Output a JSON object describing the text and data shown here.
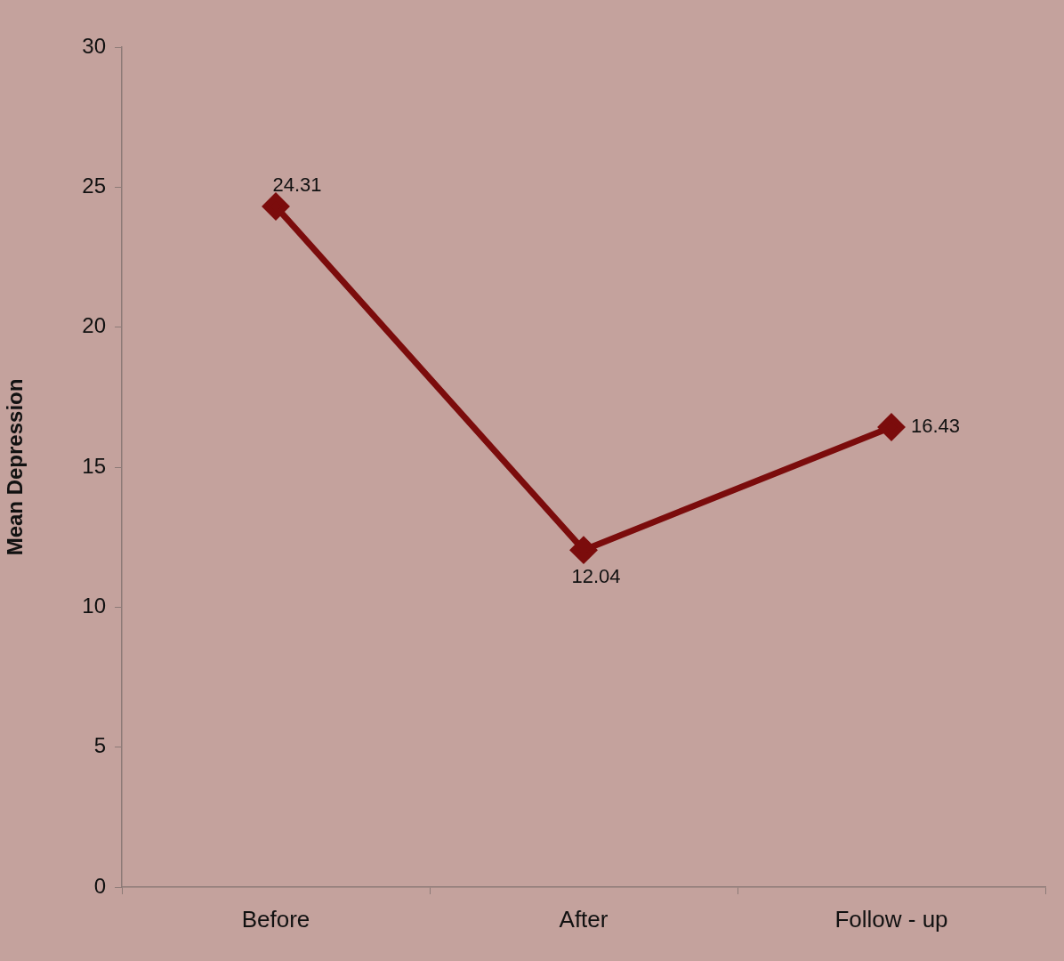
{
  "chart_data": {
    "type": "line",
    "ylabel": "Mean Depression",
    "categories": [
      "Before",
      "After",
      "Follow - up"
    ],
    "values": [
      24.31,
      12.04,
      16.43
    ],
    "color": "#7b0c0c",
    "marker": "diamond",
    "line_style": "solid",
    "ylim": [
      0,
      30
    ],
    "yticks": [
      0,
      5,
      10,
      15,
      20,
      25,
      30
    ],
    "grid": false,
    "legend": false,
    "data_labels": true
  }
}
